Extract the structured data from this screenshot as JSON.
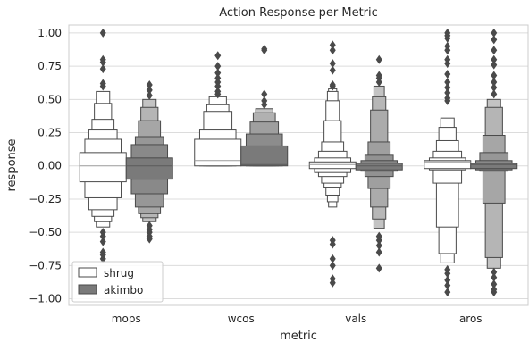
{
  "chart_data": {
    "type": "boxen",
    "title": "Action Response per Metric",
    "xlabel": "metric",
    "ylabel": "response",
    "ylim": [
      -1.05,
      1.06
    ],
    "yticks": [
      -1.0,
      -0.75,
      -0.5,
      -0.25,
      0.0,
      0.25,
      0.5,
      0.75,
      1.0
    ],
    "ytick_labels": [
      "−1.00",
      "−0.75",
      "−0.50",
      "−0.25",
      "0.00",
      "0.25",
      "0.50",
      "0.75",
      "1.00"
    ],
    "grid": true,
    "legend_position": "lower-left",
    "categories": [
      "mops",
      "wcos",
      "vals",
      "aros"
    ],
    "series": [
      {
        "name": "shrug",
        "color": "#ffffff",
        "groups": [
          {
            "category": "mops",
            "median": 0.0,
            "levels": [
              {
                "lo": -0.12,
                "hi": 0.1
              },
              {
                "lo": -0.24,
                "hi": 0.2
              },
              {
                "lo": -0.33,
                "hi": 0.27
              },
              {
                "lo": -0.38,
                "hi": 0.35
              },
              {
                "lo": -0.42,
                "hi": 0.47
              },
              {
                "lo": -0.46,
                "hi": 0.56
              }
            ],
            "outliers": [
              1.0,
              0.8,
              0.78,
              0.73,
              0.62,
              0.6,
              -0.5,
              -0.53,
              -0.57,
              -0.65,
              -0.67,
              -0.7
            ]
          },
          {
            "category": "wcos",
            "median": 0.04,
            "levels": [
              {
                "lo": 0.0,
                "hi": 0.2
              },
              {
                "lo": 0.0,
                "hi": 0.27
              },
              {
                "lo": 0.0,
                "hi": 0.41
              },
              {
                "lo": 0.0,
                "hi": 0.46
              },
              {
                "lo": 0.0,
                "hi": 0.52
              }
            ],
            "outliers": [
              0.83,
              0.75,
              0.7,
              0.66,
              0.63,
              0.6,
              0.56,
              0.54
            ]
          },
          {
            "category": "vals",
            "median": 0.01,
            "levels": [
              {
                "lo": -0.02,
                "hi": 0.03
              },
              {
                "lo": -0.05,
                "hi": 0.06
              },
              {
                "lo": -0.08,
                "hi": 0.11
              },
              {
                "lo": -0.13,
                "hi": 0.18
              },
              {
                "lo": -0.16,
                "hi": 0.34
              },
              {
                "lo": -0.22,
                "hi": 0.49
              },
              {
                "lo": -0.27,
                "hi": 0.56
              },
              {
                "lo": -0.31,
                "hi": 0.58
              }
            ],
            "outliers": [
              0.91,
              0.87,
              0.77,
              0.72,
              0.61,
              0.6,
              -0.56,
              -0.59,
              -0.7,
              -0.75,
              -0.85,
              -0.88
            ]
          },
          {
            "category": "aros",
            "median": 0.03,
            "levels": [
              {
                "lo": -0.02,
                "hi": 0.04
              },
              {
                "lo": -0.03,
                "hi": 0.06
              },
              {
                "lo": -0.13,
                "hi": 0.11
              },
              {
                "lo": -0.46,
                "hi": 0.19
              },
              {
                "lo": -0.66,
                "hi": 0.29
              },
              {
                "lo": -0.73,
                "hi": 0.36
              }
            ],
            "outliers": [
              1.0,
              0.98,
              0.96,
              0.9,
              0.87,
              0.8,
              0.77,
              0.69,
              0.63,
              0.59,
              0.55,
              0.51,
              0.49,
              -0.78,
              -0.81,
              -0.86,
              -0.9,
              -0.95
            ]
          }
        ]
      },
      {
        "name": "akimbo",
        "color": "#7a7a7a",
        "groups": [
          {
            "category": "mops",
            "median": 0.0,
            "levels": [
              {
                "lo": -0.1,
                "hi": 0.06
              },
              {
                "lo": -0.21,
                "hi": 0.16
              },
              {
                "lo": -0.31,
                "hi": 0.22
              },
              {
                "lo": -0.36,
                "hi": 0.34
              },
              {
                "lo": -0.39,
                "hi": 0.44
              },
              {
                "lo": -0.42,
                "hi": 0.5
              }
            ],
            "outliers": [
              0.61,
              0.57,
              0.53,
              -0.45,
              -0.48,
              -0.5,
              -0.53,
              -0.55
            ]
          },
          {
            "category": "wcos",
            "median": 0.01,
            "levels": [
              {
                "lo": 0.0,
                "hi": 0.15
              },
              {
                "lo": 0.0,
                "hi": 0.24
              },
              {
                "lo": 0.0,
                "hi": 0.33
              },
              {
                "lo": 0.0,
                "hi": 0.4
              },
              {
                "lo": 0.0,
                "hi": 0.43
              }
            ],
            "outliers": [
              0.88,
              0.87,
              0.54,
              0.49,
              0.46
            ]
          },
          {
            "category": "vals",
            "median": 0.0,
            "levels": [
              {
                "lo": -0.03,
                "hi": 0.02
              },
              {
                "lo": -0.04,
                "hi": 0.04
              },
              {
                "lo": -0.08,
                "hi": 0.08
              },
              {
                "lo": -0.17,
                "hi": 0.18
              },
              {
                "lo": -0.31,
                "hi": 0.42
              },
              {
                "lo": -0.4,
                "hi": 0.52
              },
              {
                "lo": -0.47,
                "hi": 0.6
              }
            ],
            "outliers": [
              0.8,
              0.68,
              0.66,
              0.63,
              -0.53,
              -0.56,
              -0.6,
              -0.65,
              -0.77
            ]
          },
          {
            "category": "aros",
            "median": 0.01,
            "levels": [
              {
                "lo": -0.02,
                "hi": 0.02
              },
              {
                "lo": -0.03,
                "hi": 0.04
              },
              {
                "lo": -0.04,
                "hi": 0.1
              },
              {
                "lo": -0.28,
                "hi": 0.23
              },
              {
                "lo": -0.69,
                "hi": 0.44
              },
              {
                "lo": -0.77,
                "hi": 0.5
              }
            ],
            "outliers": [
              1.0,
              0.95,
              0.87,
              0.8,
              0.76,
              0.68,
              0.63,
              0.59,
              0.54,
              -0.8,
              -0.84,
              -0.89,
              -0.93,
              -0.95
            ]
          }
        ]
      }
    ]
  }
}
